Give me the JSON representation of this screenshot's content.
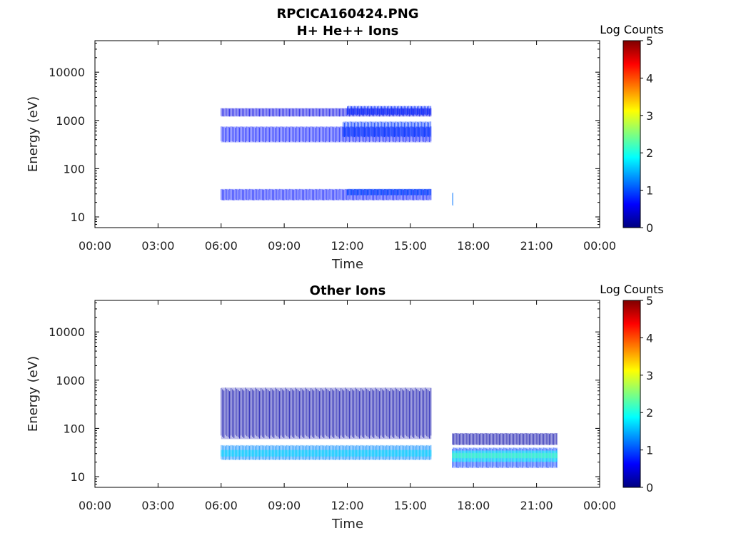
{
  "figure_title": "RPCICA160424.PNG",
  "colors": {
    "colormap": [
      "#00007f",
      "#0000ff",
      "#007fff",
      "#00ffff",
      "#7fff7f",
      "#ffff00",
      "#ff7f00",
      "#ff0000",
      "#7f0000"
    ],
    "axes": "#000000"
  },
  "chart_data": [
    {
      "type": "heatmap",
      "title": "H+ He++ Ions",
      "xlabel": "Time",
      "ylabel": "Energy (eV)",
      "y_scale": "log",
      "xlim": [
        "00:00",
        "24:00"
      ],
      "ylim": [
        6,
        45000
      ],
      "x_tick_labels": [
        "00:00",
        "03:00",
        "06:00",
        "09:00",
        "12:00",
        "15:00",
        "18:00",
        "21:00",
        "00:00"
      ],
      "y_tick_values": [
        10,
        100,
        1000,
        10000
      ],
      "y_tick_labels": [
        "10",
        "100",
        "1000",
        "10000"
      ],
      "colorbar": {
        "label": "Log Counts",
        "range": [
          0,
          5
        ],
        "ticks": [
          "0",
          "1",
          "2",
          "3",
          "4",
          "5"
        ]
      },
      "bands": [
        {
          "t_start": 6.0,
          "t_end": 16.0,
          "e_low": 350,
          "e_high": 750,
          "log_counts": 0.7
        },
        {
          "t_start": 11.8,
          "t_end": 16.0,
          "e_low": 450,
          "e_high": 950,
          "log_counts": 0.9
        },
        {
          "t_start": 6.0,
          "t_end": 16.0,
          "e_low": 1200,
          "e_high": 1800,
          "log_counts": 0.5
        },
        {
          "t_start": 12.0,
          "t_end": 16.0,
          "e_low": 1300,
          "e_high": 2000,
          "log_counts": 0.8
        },
        {
          "t_start": 6.0,
          "t_end": 16.0,
          "e_low": 22,
          "e_high": 38,
          "log_counts": 0.7
        },
        {
          "t_start": 12.0,
          "t_end": 16.0,
          "e_low": 28,
          "e_high": 38,
          "log_counts": 1.0
        },
        {
          "t_start": 17.0,
          "t_end": 17.05,
          "e_low": 17,
          "e_high": 32,
          "log_counts": 1.2
        }
      ]
    },
    {
      "type": "heatmap",
      "title": "Other Ions",
      "xlabel": "Time",
      "ylabel": "Energy (eV)",
      "y_scale": "log",
      "xlim": [
        "00:00",
        "24:00"
      ],
      "ylim": [
        6,
        45000
      ],
      "x_tick_labels": [
        "00:00",
        "03:00",
        "06:00",
        "09:00",
        "12:00",
        "15:00",
        "18:00",
        "21:00",
        "00:00"
      ],
      "y_tick_values": [
        10,
        100,
        1000,
        10000
      ],
      "y_tick_labels": [
        "10",
        "100",
        "1000",
        "10000"
      ],
      "colorbar": {
        "label": "Log Counts",
        "range": [
          0,
          5
        ],
        "ticks": [
          "0",
          "1",
          "2",
          "3",
          "4",
          "5"
        ]
      },
      "bands": [
        {
          "t_start": 6.0,
          "t_end": 16.0,
          "e_low": 22,
          "e_high": 45,
          "log_counts": 1.3
        },
        {
          "t_start": 6.0,
          "t_end": 16.0,
          "e_low": 26,
          "e_high": 36,
          "log_counts": 1.7
        },
        {
          "t_start": 6.0,
          "t_end": 16.0,
          "e_low": 60,
          "e_high": 700,
          "log_counts": 0.2
        },
        {
          "t_start": 17.0,
          "t_end": 22.0,
          "e_low": 15,
          "e_high": 40,
          "log_counts": 0.9
        },
        {
          "t_start": 17.0,
          "t_end": 22.0,
          "e_low": 20,
          "e_high": 35,
          "log_counts": 1.9
        },
        {
          "t_start": 17.0,
          "t_end": 22.0,
          "e_low": 24,
          "e_high": 31,
          "log_counts": 2.2
        },
        {
          "t_start": 17.0,
          "t_end": 22.0,
          "e_low": 45,
          "e_high": 80,
          "log_counts": 0.2
        }
      ]
    }
  ]
}
